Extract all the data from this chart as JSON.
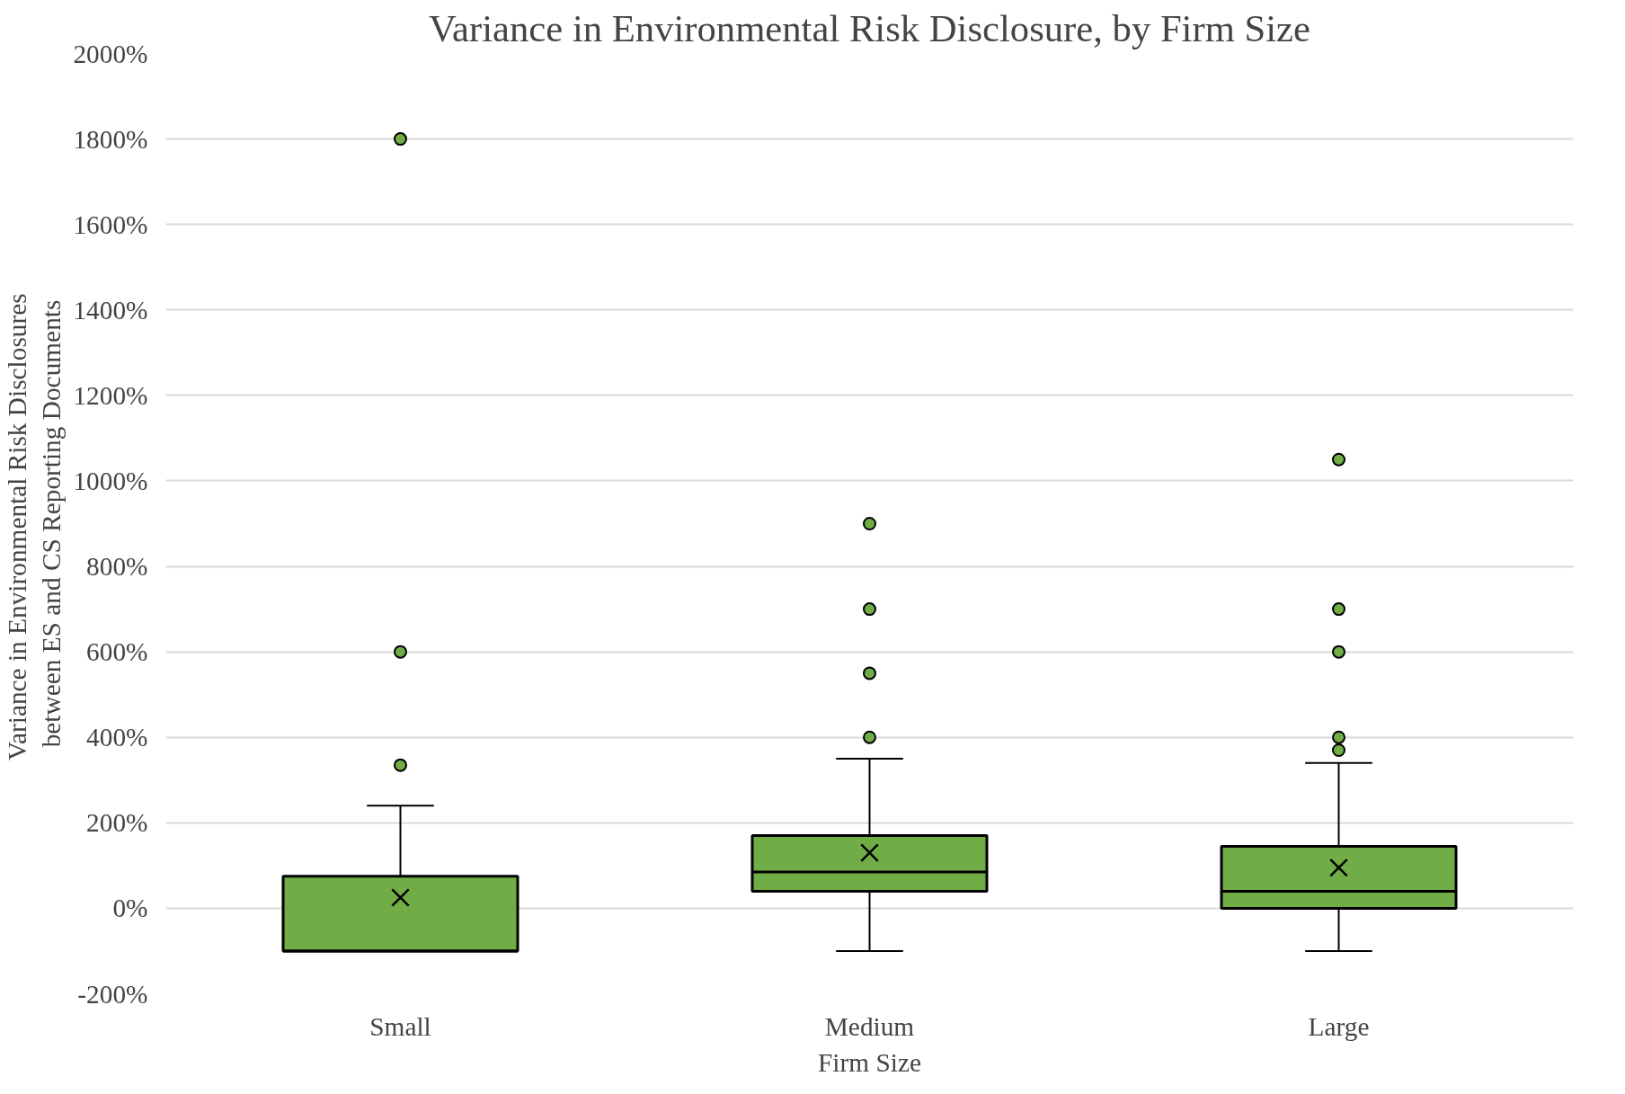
{
  "chart_data": {
    "type": "box",
    "title": "Variance in Environmental Risk Disclosure, by Firm Size",
    "xlabel": "Firm Size",
    "ylabel": "Variance in Environmental  Risk Disclosures\nbetween ES and CS Reporting Documents",
    "categories": [
      "Small",
      "Medium",
      "Large"
    ],
    "series": [
      {
        "color": "#70ad47",
        "boxes": [
          {
            "low": -100,
            "q1": -100,
            "median": -100,
            "q3": 75,
            "high": 240,
            "mean": 25,
            "outliers": [
              1800,
              600,
              335
            ]
          },
          {
            "low": -100,
            "q1": 40,
            "median": 85,
            "q3": 170,
            "high": 350,
            "mean": 130,
            "outliers": [
              900,
              700,
              550,
              400
            ]
          },
          {
            "low": -100,
            "q1": 0,
            "median": 40,
            "q3": 145,
            "high": 340,
            "mean": 95,
            "outliers": [
              1050,
              700,
              600,
              400,
              370
            ]
          }
        ]
      }
    ],
    "ylim": [
      -200,
      2000
    ],
    "yticks": [
      {
        "value": -200,
        "label": "-200%"
      },
      {
        "value": 0,
        "label": "0%"
      },
      {
        "value": 200,
        "label": "200%"
      },
      {
        "value": 400,
        "label": "400%"
      },
      {
        "value": 600,
        "label": "600%"
      },
      {
        "value": 800,
        "label": "800%"
      },
      {
        "value": 1000,
        "label": "1000%"
      },
      {
        "value": 1200,
        "label": "1200%"
      },
      {
        "value": 1400,
        "label": "1400%"
      },
      {
        "value": 1600,
        "label": "1600%"
      },
      {
        "value": 1800,
        "label": "1800%"
      },
      {
        "value": 2000,
        "label": "2000%"
      }
    ],
    "grid": "y"
  }
}
